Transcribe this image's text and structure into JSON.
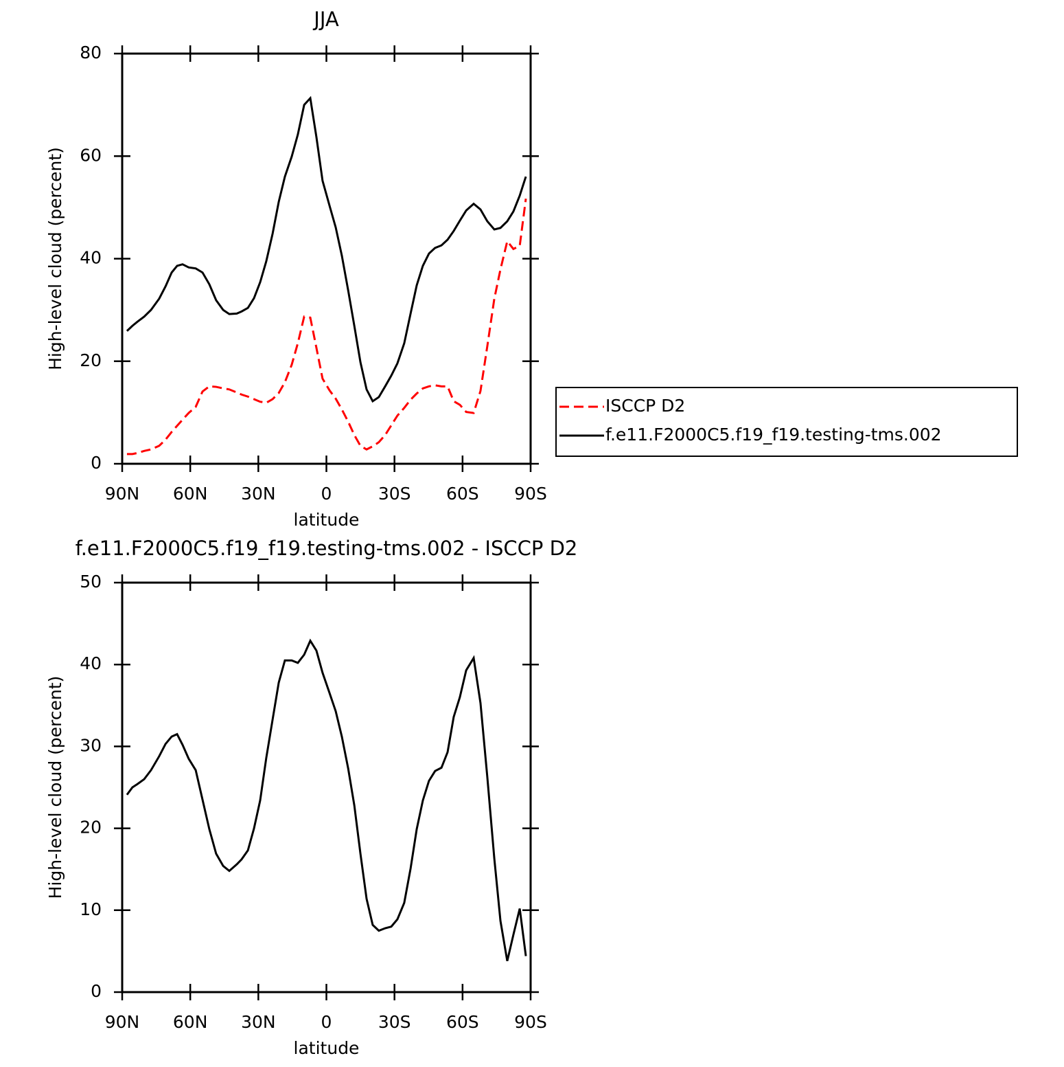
{
  "chart_data": [
    {
      "type": "line",
      "title": "JJA",
      "xlabel": "latitude",
      "ylabel": "High-level cloud (percent)",
      "xlim": [
        90,
        -90
      ],
      "ylim": [
        0,
        80
      ],
      "xticks": [
        {
          "value": 90,
          "label": "90N"
        },
        {
          "value": 60,
          "label": "60N"
        },
        {
          "value": 30,
          "label": "30N"
        },
        0,
        {
          "value": -30,
          "label": "30S"
        },
        {
          "value": -60,
          "label": "60S"
        },
        {
          "value": -90,
          "label": "90S"
        }
      ],
      "yticks": [
        0,
        20,
        40,
        60,
        80
      ],
      "legend": "right",
      "x": [
        87.9,
        85.5,
        83.3,
        80.3,
        77.3,
        73.7,
        70.9,
        68.2,
        65.8,
        63.4,
        60.7,
        57.6,
        54.6,
        51.6,
        48.6,
        45.5,
        42.8,
        39.5,
        37.4,
        34.6,
        31.9,
        29.2,
        26.5,
        23.7,
        21.0,
        18.3,
        15.3,
        12.6,
        9.8,
        7.1,
        4.4,
        1.7,
        -1.4,
        -4.1,
        -6.8,
        -9.6,
        -12.3,
        -15.0,
        -17.7,
        -20.4,
        -23.1,
        -25.9,
        -28.6,
        -31.3,
        -34.3,
        -37.1,
        -39.8,
        -42.5,
        -45.2,
        -47.9,
        -50.7,
        -53.4,
        -56.1,
        -58.8,
        -61.6,
        -64.9,
        -67.9,
        -70.9,
        -74.0,
        -76.7,
        -79.7,
        -82.4,
        -85.2,
        -87.9
      ],
      "series": [
        {
          "name": "ISCCP D2",
          "color": "#ff0000",
          "linestyle": "dashed",
          "values": [
            1.9,
            1.9,
            2.1,
            2.5,
            2.8,
            3.5,
            4.7,
            6.2,
            7.4,
            8.6,
            9.9,
            11.1,
            14.1,
            15.1,
            15.0,
            14.7,
            14.5,
            13.9,
            13.5,
            13.1,
            12.6,
            12.1,
            11.9,
            12.6,
            13.8,
            15.9,
            19.3,
            23.5,
            28.7,
            28.5,
            22.6,
            16.6,
            14.3,
            12.7,
            10.6,
            8.2,
            5.6,
            3.5,
            2.8,
            3.4,
            4.2,
            5.6,
            7.5,
            9.4,
            10.9,
            12.5,
            13.7,
            14.7,
            15.1,
            15.3,
            15.1,
            15.1,
            12.2,
            11.5,
            10.1,
            9.9,
            14.2,
            22.9,
            32.2,
            37.9,
            43.4,
            41.9,
            42.5,
            51.7
          ]
        },
        {
          "name": "f.e11.F2000C5.f19_f19.testing-tms.002",
          "color": "#000000",
          "linestyle": "solid",
          "values": [
            25.9,
            26.9,
            27.7,
            28.7,
            30.0,
            32.2,
            34.6,
            37.3,
            38.6,
            38.9,
            38.3,
            38.1,
            37.3,
            35.0,
            31.9,
            30.0,
            29.2,
            29.3,
            29.7,
            30.4,
            32.3,
            35.4,
            39.5,
            44.9,
            51.1,
            56.0,
            59.9,
            64.2,
            70.0,
            71.3,
            63.7,
            55.2,
            50.3,
            46.1,
            40.6,
            33.8,
            26.9,
            19.8,
            14.5,
            12.2,
            13.0,
            15.1,
            17.2,
            19.6,
            23.5,
            29.3,
            34.8,
            38.6,
            41.0,
            42.1,
            42.6,
            43.7,
            45.4,
            47.4,
            49.4,
            50.7,
            49.6,
            47.3,
            45.7,
            46.0,
            47.3,
            49.2,
            52.3,
            56.0
          ]
        }
      ]
    },
    {
      "type": "line",
      "title": "f.e11.F2000C5.f19_f19.testing-tms.002 - ISCCP D2",
      "xlabel": "latitude",
      "ylabel": "High-level cloud (percent)",
      "xlim": [
        90,
        -90
      ],
      "ylim": [
        0,
        50
      ],
      "xticks": [
        {
          "value": 90,
          "label": "90N"
        },
        {
          "value": 60,
          "label": "60N"
        },
        {
          "value": 30,
          "label": "30N"
        },
        0,
        {
          "value": -30,
          "label": "30S"
        },
        {
          "value": -60,
          "label": "60S"
        },
        {
          "value": -90,
          "label": "90S"
        }
      ],
      "yticks": [
        0,
        10,
        20,
        30,
        40,
        50
      ],
      "x": [
        87.9,
        85.5,
        83.3,
        80.3,
        77.3,
        73.7,
        70.9,
        68.2,
        65.8,
        63.4,
        60.7,
        57.6,
        54.6,
        51.6,
        48.6,
        45.5,
        42.8,
        39.5,
        37.4,
        34.6,
        31.9,
        29.2,
        26.5,
        23.7,
        21.0,
        18.3,
        15.3,
        12.6,
        9.8,
        7.1,
        4.4,
        1.7,
        -1.4,
        -4.1,
        -6.8,
        -9.6,
        -12.3,
        -15.0,
        -17.7,
        -20.4,
        -23.1,
        -25.9,
        -28.6,
        -31.3,
        -34.3,
        -37.1,
        -39.8,
        -42.5,
        -45.2,
        -47.9,
        -50.7,
        -53.4,
        -56.1,
        -58.8,
        -61.6,
        -64.9,
        -67.9,
        -70.9,
        -74.0,
        -76.7,
        -79.7,
        -82.4,
        -85.2,
        -87.9
      ],
      "series": [
        {
          "color": "#000000",
          "linestyle": "solid",
          "values": [
            24.1,
            25.0,
            25.4,
            26.0,
            27.1,
            28.8,
            30.3,
            31.2,
            31.5,
            30.2,
            28.5,
            27.1,
            23.5,
            19.9,
            16.9,
            15.4,
            14.8,
            15.6,
            16.2,
            17.3,
            20.0,
            23.4,
            28.6,
            33.3,
            37.8,
            40.5,
            40.5,
            40.2,
            41.2,
            42.9,
            41.7,
            39.0,
            36.5,
            34.3,
            31.2,
            27.3,
            22.8,
            16.9,
            11.4,
            8.2,
            7.5,
            7.8,
            8.0,
            8.9,
            10.9,
            15.1,
            19.9,
            23.4,
            25.8,
            27.0,
            27.4,
            29.3,
            33.6,
            36.0,
            39.3,
            40.8,
            35.3,
            26.3,
            16.3,
            8.7,
            3.8,
            7.0,
            10.2,
            4.4
          ]
        }
      ]
    }
  ]
}
